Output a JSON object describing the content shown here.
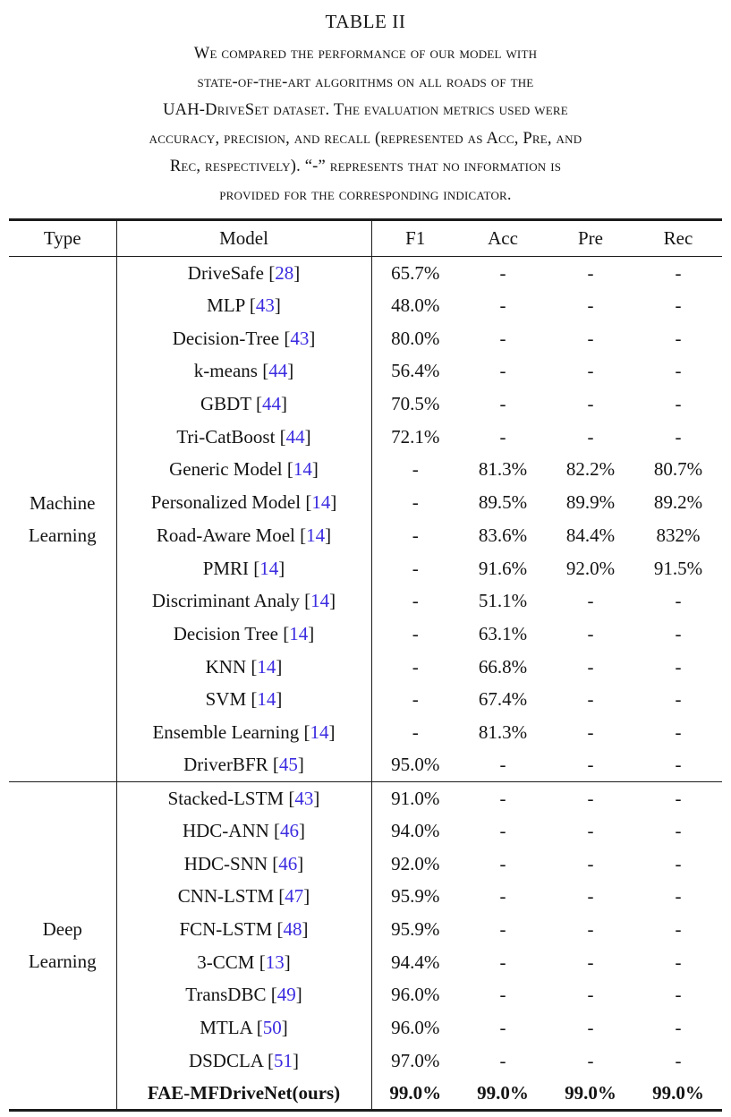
{
  "colors": {
    "background": "#ffffff",
    "text": "#141414",
    "rule": "#1c1c1c",
    "citation": "#3A2BE0"
  },
  "caption": {
    "label": "TABLE II",
    "lines": [
      "We compared the performance of our model with",
      "state-of-the-art algorithms on all roads of the",
      "UAH-DriveSet dataset. The evaluation metrics used were",
      "accuracy, precision, and recall (represented as Acc, Pre, and",
      "Rec, respectively). “-” represents that no information is",
      "provided for the corresponding indicator."
    ]
  },
  "table": {
    "headers": [
      "Type",
      "Model",
      "F1",
      "Acc",
      "Pre",
      "Rec"
    ],
    "citation_brackets": [
      "[",
      "]"
    ],
    "sections": [
      {
        "type": "Machine\nLearning",
        "rows": [
          {
            "model": "DriveSafe",
            "cite": "28",
            "f1": "65.7%",
            "acc": "-",
            "pre": "-",
            "rec": "-",
            "bold": false
          },
          {
            "model": "MLP",
            "cite": "43",
            "f1": "48.0%",
            "acc": "-",
            "pre": "-",
            "rec": "-",
            "bold": false
          },
          {
            "model": "Decision-Tree",
            "cite": "43",
            "f1": "80.0%",
            "acc": "-",
            "pre": "-",
            "rec": "-",
            "bold": false
          },
          {
            "model": "k-means",
            "cite": "44",
            "f1": "56.4%",
            "acc": "-",
            "pre": "-",
            "rec": "-",
            "bold": false
          },
          {
            "model": "GBDT",
            "cite": "44",
            "f1": "70.5%",
            "acc": "-",
            "pre": "-",
            "rec": "-",
            "bold": false
          },
          {
            "model": "Tri-CatBoost",
            "cite": "44",
            "f1": "72.1%",
            "acc": "-",
            "pre": "-",
            "rec": "-",
            "bold": false
          },
          {
            "model": "Generic Model",
            "cite": "14",
            "f1": "-",
            "acc": "81.3%",
            "pre": "82.2%",
            "rec": "80.7%",
            "bold": false
          },
          {
            "model": "Personalized Model",
            "cite": "14",
            "f1": "-",
            "acc": "89.5%",
            "pre": "89.9%",
            "rec": "89.2%",
            "bold": false
          },
          {
            "model": "Road-Aware Moel",
            "cite": "14",
            "f1": "-",
            "acc": "83.6%",
            "pre": "84.4%",
            "rec": "832%",
            "bold": false
          },
          {
            "model": "PMRI",
            "cite": "14",
            "f1": "-",
            "acc": "91.6%",
            "pre": "92.0%",
            "rec": "91.5%",
            "bold": false
          },
          {
            "model": "Discriminant Analy",
            "cite": "14",
            "f1": "-",
            "acc": "51.1%",
            "pre": "-",
            "rec": "-",
            "bold": false
          },
          {
            "model": "Decision Tree",
            "cite": "14",
            "f1": "-",
            "acc": "63.1%",
            "pre": "-",
            "rec": "-",
            "bold": false
          },
          {
            "model": "KNN",
            "cite": "14",
            "f1": "-",
            "acc": "66.8%",
            "pre": "-",
            "rec": "-",
            "bold": false
          },
          {
            "model": "SVM",
            "cite": "14",
            "f1": "-",
            "acc": "67.4%",
            "pre": "-",
            "rec": "-",
            "bold": false
          },
          {
            "model": "Ensemble Learning",
            "cite": "14",
            "f1": "-",
            "acc": "81.3%",
            "pre": "-",
            "rec": "-",
            "bold": false
          },
          {
            "model": "DriverBFR",
            "cite": "45",
            "f1": "95.0%",
            "acc": "-",
            "pre": "-",
            "rec": "-",
            "bold": false
          }
        ]
      },
      {
        "type": "Deep\nLearning",
        "rows": [
          {
            "model": "Stacked-LSTM",
            "cite": "43",
            "f1": "91.0%",
            "acc": "-",
            "pre": "-",
            "rec": "-",
            "bold": false
          },
          {
            "model": "HDC-ANN",
            "cite": "46",
            "f1": "94.0%",
            "acc": "-",
            "pre": "-",
            "rec": "-",
            "bold": false
          },
          {
            "model": "HDC-SNN",
            "cite": "46",
            "f1": "92.0%",
            "acc": "-",
            "pre": "-",
            "rec": "-",
            "bold": false
          },
          {
            "model": "CNN-LSTM",
            "cite": "47",
            "f1": "95.9%",
            "acc": "-",
            "pre": "-",
            "rec": "-",
            "bold": false
          },
          {
            "model": "FCN-LSTM",
            "cite": "48",
            "f1": "95.9%",
            "acc": "-",
            "pre": "-",
            "rec": "-",
            "bold": false
          },
          {
            "model": "3-CCM",
            "cite": "13",
            "f1": "94.4%",
            "acc": "-",
            "pre": "-",
            "rec": "-",
            "bold": false
          },
          {
            "model": "TransDBC",
            "cite": "49",
            "f1": "96.0%",
            "acc": "-",
            "pre": "-",
            "rec": "-",
            "bold": false
          },
          {
            "model": "MTLA",
            "cite": "50",
            "f1": "96.0%",
            "acc": "-",
            "pre": "-",
            "rec": "-",
            "bold": false
          },
          {
            "model": "DSDCLA",
            "cite": "51",
            "f1": "97.0%",
            "acc": "-",
            "pre": "-",
            "rec": "-",
            "bold": false
          },
          {
            "model": "FAE-MFDriveNet(ours)",
            "cite": null,
            "f1": "99.0%",
            "acc": "99.0%",
            "pre": "99.0%",
            "rec": "99.0%",
            "bold": true
          }
        ]
      }
    ]
  }
}
